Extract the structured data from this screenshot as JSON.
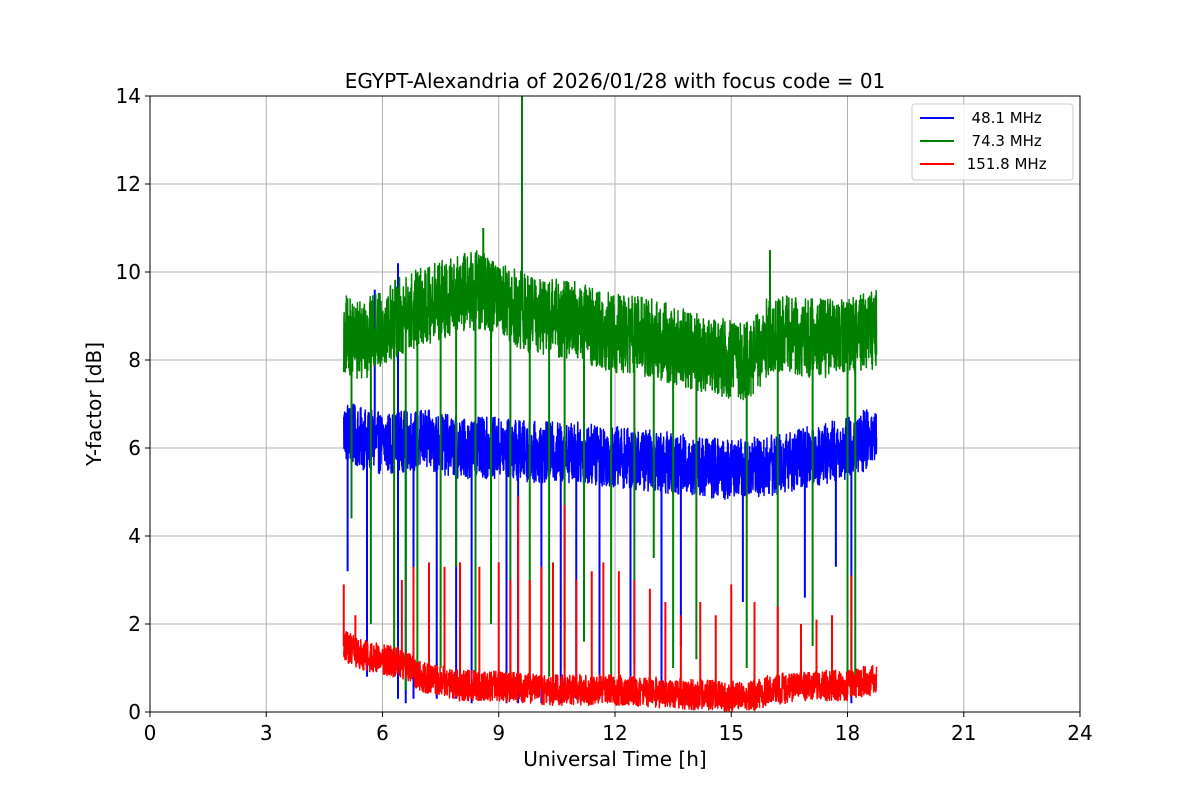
{
  "chart_data": {
    "type": "line",
    "title": "EGYPT-Alexandria of 2026/01/28 with focus code = 01",
    "xlabel": "Universal Time [h]",
    "ylabel": "Y-factor [dB]",
    "xlim": [
      0,
      24
    ],
    "ylim": [
      0,
      14
    ],
    "xticks": [
      0,
      3,
      6,
      9,
      12,
      15,
      18,
      21,
      24
    ],
    "yticks": [
      0,
      2,
      4,
      6,
      8,
      10,
      12,
      14
    ],
    "xtick_labels": [
      "0",
      "3",
      "6",
      "9",
      "12",
      "15",
      "18",
      "21",
      "24"
    ],
    "ytick_labels": [
      "0",
      "2",
      "4",
      "6",
      "8",
      "10",
      "12",
      "14"
    ],
    "grid": true,
    "legend_position": "upper-right",
    "series": [
      {
        "name": "  48.1 MHz",
        "color": "#0000ff",
        "x_range": [
          5.0,
          18.75
        ],
        "baseline": [
          [
            5.0,
            6.4
          ],
          [
            5.5,
            6.2
          ],
          [
            6.0,
            6.1
          ],
          [
            7.0,
            6.2
          ],
          [
            8.0,
            6.0
          ],
          [
            9.0,
            6.0
          ],
          [
            10.0,
            5.9
          ],
          [
            11.0,
            5.9
          ],
          [
            12.0,
            5.8
          ],
          [
            13.0,
            5.7
          ],
          [
            14.0,
            5.6
          ],
          [
            15.0,
            5.5
          ],
          [
            16.0,
            5.6
          ],
          [
            17.0,
            5.8
          ],
          [
            18.0,
            6.0
          ],
          [
            18.75,
            6.3
          ]
        ],
        "noise_amplitude": 0.7,
        "dips": [
          [
            5.1,
            3.2
          ],
          [
            5.6,
            0.8
          ],
          [
            6.4,
            0.3
          ],
          [
            6.6,
            0.2
          ],
          [
            6.8,
            0.3
          ],
          [
            7.4,
            0.3
          ],
          [
            7.9,
            0.3
          ],
          [
            8.3,
            0.2
          ],
          [
            9.2,
            0.2
          ],
          [
            9.5,
            0.2
          ],
          [
            10.1,
            0.2
          ],
          [
            10.6,
            0.2
          ],
          [
            11.0,
            0.3
          ],
          [
            11.6,
            0.3
          ],
          [
            12.4,
            0.4
          ],
          [
            13.2,
            0.4
          ],
          [
            13.7,
            1.5
          ],
          [
            15.3,
            2.5
          ],
          [
            16.9,
            2.6
          ],
          [
            17.7,
            3.3
          ],
          [
            18.1,
            0.2
          ]
        ],
        "spikes": [
          [
            6.4,
            10.2
          ],
          [
            5.8,
            9.6
          ]
        ]
      },
      {
        "name": "  74.3 MHz",
        "color": "#008000",
        "x_range": [
          5.0,
          18.75
        ],
        "baseline": [
          [
            5.0,
            8.6
          ],
          [
            5.5,
            8.4
          ],
          [
            6.0,
            8.8
          ],
          [
            7.0,
            9.2
          ],
          [
            8.0,
            9.5
          ],
          [
            8.5,
            9.6
          ],
          [
            9.0,
            9.3
          ],
          [
            10.0,
            9.0
          ],
          [
            11.0,
            8.9
          ],
          [
            12.0,
            8.6
          ],
          [
            13.0,
            8.5
          ],
          [
            14.0,
            8.2
          ],
          [
            15.0,
            8.0
          ],
          [
            15.5,
            8.0
          ],
          [
            16.0,
            8.6
          ],
          [
            17.0,
            8.5
          ],
          [
            18.0,
            8.5
          ],
          [
            18.75,
            8.7
          ]
        ],
        "noise_amplitude": 0.9,
        "dips": [
          [
            5.2,
            4.4
          ],
          [
            5.7,
            2.0
          ],
          [
            6.3,
            0.8
          ],
          [
            6.6,
            0.5
          ],
          [
            6.9,
            0.6
          ],
          [
            7.5,
            1.0
          ],
          [
            7.9,
            3.3
          ],
          [
            8.4,
            0.4
          ],
          [
            8.8,
            2.0
          ],
          [
            9.3,
            0.3
          ],
          [
            9.8,
            0.4
          ],
          [
            10.3,
            0.8
          ],
          [
            10.7,
            1.0
          ],
          [
            11.2,
            1.6
          ],
          [
            11.9,
            0.5
          ],
          [
            12.5,
            1.1
          ],
          [
            13.0,
            3.5
          ],
          [
            13.5,
            1.0
          ],
          [
            14.1,
            1.2
          ],
          [
            15.4,
            1.0
          ],
          [
            16.2,
            0.8
          ],
          [
            17.1,
            1.5
          ],
          [
            18.0,
            0.4
          ],
          [
            18.2,
            0.5
          ]
        ],
        "spikes": [
          [
            9.6,
            14.0
          ],
          [
            16.0,
            10.5
          ],
          [
            8.6,
            11.0
          ]
        ]
      },
      {
        "name": " 151.8 MHz",
        "color": "#ff0000",
        "x_range": [
          5.0,
          18.75
        ],
        "baseline": [
          [
            5.0,
            1.5
          ],
          [
            5.5,
            1.3
          ],
          [
            6.0,
            1.2
          ],
          [
            6.5,
            1.1
          ],
          [
            7.0,
            0.8
          ],
          [
            8.0,
            0.6
          ],
          [
            9.0,
            0.6
          ],
          [
            10.0,
            0.5
          ],
          [
            11.0,
            0.5
          ],
          [
            12.0,
            0.5
          ],
          [
            13.0,
            0.45
          ],
          [
            14.0,
            0.4
          ],
          [
            15.0,
            0.35
          ],
          [
            15.5,
            0.35
          ],
          [
            16.0,
            0.5
          ],
          [
            17.0,
            0.6
          ],
          [
            18.0,
            0.6
          ],
          [
            18.75,
            0.75
          ]
        ],
        "noise_amplitude": 0.35,
        "dips": [],
        "spikes": [
          [
            5.0,
            2.9
          ],
          [
            5.3,
            2.2
          ],
          [
            6.5,
            3.0
          ],
          [
            6.8,
            3.3
          ],
          [
            7.2,
            3.4
          ],
          [
            7.6,
            3.3
          ],
          [
            8.0,
            3.4
          ],
          [
            8.5,
            3.3
          ],
          [
            9.0,
            3.4
          ],
          [
            9.3,
            3.0
          ],
          [
            9.5,
            4.9
          ],
          [
            9.8,
            3.0
          ],
          [
            10.1,
            3.3
          ],
          [
            10.4,
            3.4
          ],
          [
            10.7,
            4.7
          ],
          [
            11.0,
            3.0
          ],
          [
            11.4,
            3.2
          ],
          [
            11.7,
            3.4
          ],
          [
            12.1,
            3.2
          ],
          [
            12.5,
            3.0
          ],
          [
            12.9,
            2.8
          ],
          [
            13.3,
            2.5
          ],
          [
            13.7,
            2.2
          ],
          [
            14.2,
            2.5
          ],
          [
            14.6,
            2.2
          ],
          [
            15.0,
            2.9
          ],
          [
            15.6,
            2.5
          ],
          [
            16.2,
            2.4
          ],
          [
            16.8,
            2.0
          ],
          [
            17.2,
            2.1
          ],
          [
            17.6,
            2.2
          ],
          [
            18.1,
            3.1
          ]
        ]
      }
    ]
  }
}
